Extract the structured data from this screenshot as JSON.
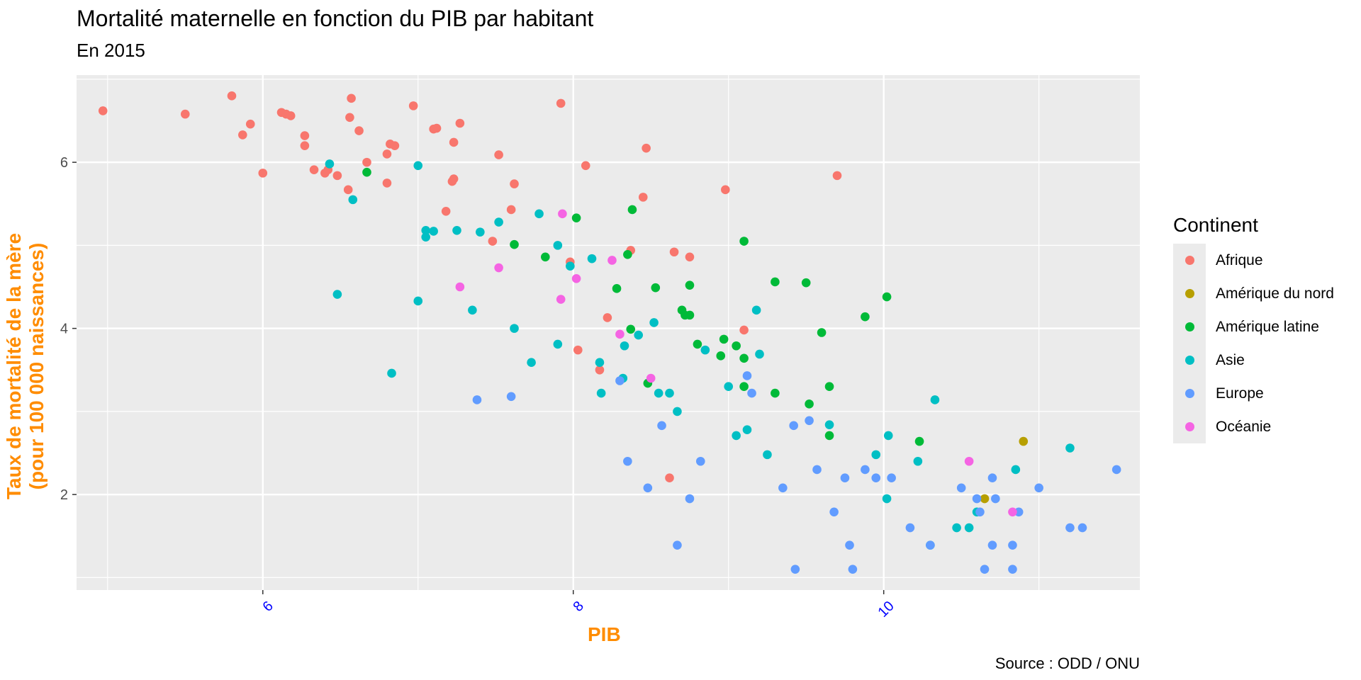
{
  "title": "Mortalité maternelle en fonction du PIB par habitant",
  "subtitle": "En 2015",
  "caption": "Source : ODD / ONU",
  "chart_data": {
    "type": "scatter",
    "xlabel": "PIB",
    "ylabel_line1": "Taux de mortalité de la mère",
    "ylabel_line2": "(pour 100 000 naissances)",
    "xlim": [
      4.8,
      11.65
    ],
    "ylim": [
      0.85,
      7.05
    ],
    "xticks": [
      6,
      8,
      10
    ],
    "yticks": [
      2,
      4,
      6
    ],
    "grid": true,
    "legend_title": "Continent",
    "legend_position": "right",
    "axis_label_color": "#ff8c00",
    "x_tick_color": "#0000ff",
    "series": [
      {
        "name": "Afrique",
        "color": "#f8766d",
        "points": [
          [
            4.97,
            6.62
          ],
          [
            5.5,
            6.58
          ],
          [
            5.8,
            6.8
          ],
          [
            5.87,
            6.33
          ],
          [
            5.92,
            6.46
          ],
          [
            6.0,
            5.87
          ],
          [
            6.12,
            6.6
          ],
          [
            6.15,
            6.58
          ],
          [
            6.18,
            6.56
          ],
          [
            6.27,
            6.32
          ],
          [
            6.27,
            6.2
          ],
          [
            6.33,
            5.91
          ],
          [
            6.4,
            5.87
          ],
          [
            6.42,
            5.91
          ],
          [
            6.48,
            5.84
          ],
          [
            6.55,
            5.67
          ],
          [
            6.56,
            6.54
          ],
          [
            6.57,
            6.77
          ],
          [
            6.62,
            6.38
          ],
          [
            6.67,
            6.0
          ],
          [
            6.8,
            5.75
          ],
          [
            6.8,
            6.1
          ],
          [
            6.82,
            6.22
          ],
          [
            6.85,
            6.2
          ],
          [
            6.97,
            6.68
          ],
          [
            7.1,
            6.4
          ],
          [
            7.12,
            6.41
          ],
          [
            7.18,
            5.41
          ],
          [
            7.22,
            5.77
          ],
          [
            7.23,
            5.8
          ],
          [
            7.23,
            6.24
          ],
          [
            7.27,
            6.47
          ],
          [
            7.48,
            5.05
          ],
          [
            7.52,
            6.09
          ],
          [
            7.6,
            5.43
          ],
          [
            7.62,
            5.74
          ],
          [
            7.92,
            6.71
          ],
          [
            7.98,
            4.8
          ],
          [
            8.03,
            3.74
          ],
          [
            8.08,
            5.96
          ],
          [
            8.17,
            3.5
          ],
          [
            8.22,
            4.13
          ],
          [
            8.37,
            4.94
          ],
          [
            8.45,
            5.58
          ],
          [
            8.47,
            6.17
          ],
          [
            8.62,
            2.2
          ],
          [
            8.65,
            4.92
          ],
          [
            8.75,
            4.86
          ],
          [
            8.98,
            5.67
          ],
          [
            9.1,
            3.98
          ],
          [
            9.7,
            5.84
          ]
        ]
      },
      {
        "name": "Amérique du nord",
        "color": "#b79f00",
        "points": [
          [
            10.65,
            1.95
          ],
          [
            10.9,
            2.64
          ]
        ]
      },
      {
        "name": "Amérique latine",
        "color": "#00ba38",
        "points": [
          [
            6.67,
            5.88
          ],
          [
            7.62,
            5.01
          ],
          [
            7.82,
            4.86
          ],
          [
            8.02,
            5.33
          ],
          [
            8.28,
            4.48
          ],
          [
            8.35,
            4.89
          ],
          [
            8.37,
            3.99
          ],
          [
            8.38,
            5.43
          ],
          [
            8.48,
            3.34
          ],
          [
            8.53,
            4.49
          ],
          [
            8.7,
            4.22
          ],
          [
            8.72,
            4.16
          ],
          [
            8.75,
            4.16
          ],
          [
            8.75,
            4.52
          ],
          [
            8.8,
            3.81
          ],
          [
            8.95,
            3.67
          ],
          [
            8.97,
            3.87
          ],
          [
            9.05,
            3.79
          ],
          [
            9.1,
            3.64
          ],
          [
            9.1,
            3.3
          ],
          [
            9.1,
            5.05
          ],
          [
            9.3,
            4.56
          ],
          [
            9.3,
            3.22
          ],
          [
            9.5,
            4.55
          ],
          [
            9.52,
            3.09
          ],
          [
            9.6,
            3.95
          ],
          [
            9.65,
            3.3
          ],
          [
            9.65,
            2.71
          ],
          [
            9.88,
            4.14
          ],
          [
            10.02,
            4.38
          ],
          [
            10.23,
            2.64
          ]
        ]
      },
      {
        "name": "Asie",
        "color": "#00bfc4",
        "points": [
          [
            6.43,
            5.98
          ],
          [
            6.58,
            5.55
          ],
          [
            6.48,
            4.41
          ],
          [
            6.83,
            3.46
          ],
          [
            7.0,
            4.33
          ],
          [
            7.0,
            5.96
          ],
          [
            7.05,
            5.1
          ],
          [
            7.05,
            5.18
          ],
          [
            7.1,
            5.17
          ],
          [
            7.25,
            5.18
          ],
          [
            7.35,
            4.22
          ],
          [
            7.4,
            5.16
          ],
          [
            7.52,
            5.28
          ],
          [
            7.62,
            4.0
          ],
          [
            7.73,
            3.59
          ],
          [
            7.78,
            5.38
          ],
          [
            7.9,
            3.81
          ],
          [
            7.9,
            5.0
          ],
          [
            7.98,
            4.75
          ],
          [
            8.12,
            4.84
          ],
          [
            8.17,
            3.59
          ],
          [
            8.18,
            3.22
          ],
          [
            8.32,
            3.4
          ],
          [
            8.33,
            3.79
          ],
          [
            8.42,
            3.92
          ],
          [
            8.52,
            4.07
          ],
          [
            8.55,
            3.22
          ],
          [
            8.62,
            3.22
          ],
          [
            8.67,
            3.0
          ],
          [
            8.85,
            3.74
          ],
          [
            9.0,
            3.3
          ],
          [
            9.05,
            2.71
          ],
          [
            9.12,
            2.78
          ],
          [
            9.18,
            4.22
          ],
          [
            9.2,
            3.69
          ],
          [
            9.25,
            2.48
          ],
          [
            9.65,
            2.84
          ],
          [
            9.95,
            2.48
          ],
          [
            10.02,
            1.95
          ],
          [
            10.03,
            2.71
          ],
          [
            10.22,
            2.4
          ],
          [
            10.3,
            1.39
          ],
          [
            10.33,
            3.14
          ],
          [
            10.47,
            1.6
          ],
          [
            10.55,
            1.6
          ],
          [
            10.6,
            1.79
          ],
          [
            10.85,
            2.3
          ],
          [
            11.2,
            2.56
          ]
        ]
      },
      {
        "name": "Europe",
        "color": "#619cff",
        "points": [
          [
            7.38,
            3.14
          ],
          [
            7.6,
            3.18
          ],
          [
            8.3,
            3.37
          ],
          [
            8.35,
            2.4
          ],
          [
            8.48,
            2.08
          ],
          [
            8.57,
            2.83
          ],
          [
            8.67,
            1.39
          ],
          [
            8.75,
            1.95
          ],
          [
            8.82,
            2.4
          ],
          [
            9.12,
            3.43
          ],
          [
            9.15,
            3.22
          ],
          [
            9.35,
            2.08
          ],
          [
            9.42,
            2.83
          ],
          [
            9.43,
            1.1
          ],
          [
            9.52,
            2.89
          ],
          [
            9.57,
            2.3
          ],
          [
            9.68,
            1.79
          ],
          [
            9.75,
            2.2
          ],
          [
            9.78,
            1.39
          ],
          [
            9.8,
            1.1
          ],
          [
            9.88,
            2.3
          ],
          [
            9.95,
            2.2
          ],
          [
            10.05,
            2.2
          ],
          [
            10.17,
            1.6
          ],
          [
            10.3,
            1.39
          ],
          [
            10.5,
            2.08
          ],
          [
            10.6,
            1.95
          ],
          [
            10.62,
            1.79
          ],
          [
            10.65,
            1.1
          ],
          [
            10.7,
            1.39
          ],
          [
            10.7,
            2.2
          ],
          [
            10.72,
            1.95
          ],
          [
            10.83,
            1.39
          ],
          [
            10.83,
            1.1
          ],
          [
            10.87,
            1.79
          ],
          [
            11.0,
            2.08
          ],
          [
            11.2,
            1.6
          ],
          [
            11.28,
            1.6
          ],
          [
            11.5,
            2.3
          ]
        ]
      },
      {
        "name": "Océanie",
        "color": "#f564e3",
        "points": [
          [
            7.27,
            4.5
          ],
          [
            7.52,
            4.73
          ],
          [
            7.92,
            4.35
          ],
          [
            7.93,
            5.38
          ],
          [
            8.02,
            4.6
          ],
          [
            8.25,
            4.82
          ],
          [
            8.3,
            3.93
          ],
          [
            8.5,
            3.4
          ],
          [
            10.55,
            2.4
          ],
          [
            10.83,
            1.79
          ]
        ]
      }
    ]
  }
}
